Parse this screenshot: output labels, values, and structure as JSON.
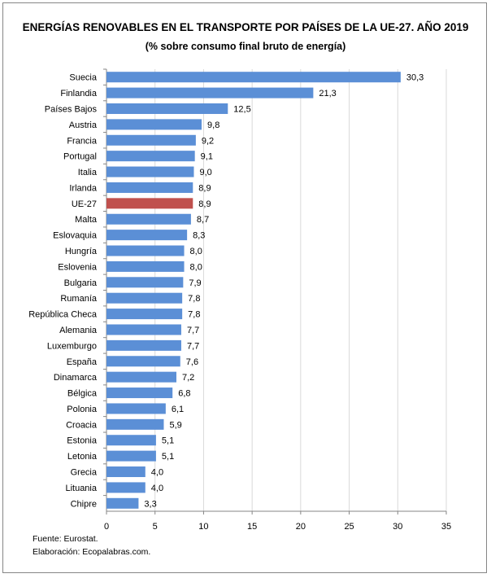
{
  "chart_data": {
    "type": "bar",
    "orientation": "horizontal",
    "title": "ENERGÍAS RENOVABLES EN EL TRANSPORTE POR PAÍSES DE LA UE-27. AÑO 2019",
    "subtitle": "(% sobre consumo final bruto de energía)",
    "categories": [
      "Suecia",
      "Finlandia",
      "Países Bajos",
      "Austria",
      "Francia",
      "Portugal",
      "Italia",
      "Irlanda",
      "UE-27",
      "Malta",
      "Eslovaquia",
      "Hungría",
      "Eslovenia",
      "Bulgaria",
      "Rumanía",
      "República Checa",
      "Alemania",
      "Luxemburgo",
      "España",
      "Dinamarca",
      "Bélgica",
      "Polonia",
      "Croacia",
      "Estonia",
      "Letonia",
      "Grecia",
      "Lituania",
      "Chipre"
    ],
    "values": [
      30.3,
      21.3,
      12.5,
      9.8,
      9.2,
      9.1,
      9.0,
      8.9,
      8.9,
      8.7,
      8.3,
      8.0,
      8.0,
      7.9,
      7.8,
      7.8,
      7.7,
      7.7,
      7.6,
      7.2,
      6.8,
      6.1,
      5.9,
      5.1,
      5.1,
      4.0,
      4.0,
      3.3
    ],
    "data_labels": [
      "30,3",
      "21,3",
      "12,5",
      "9,8",
      "9,2",
      "9,1",
      "9,0",
      "8,9",
      "8,9",
      "8,7",
      "8,3",
      "8,0",
      "8,0",
      "7,9",
      "7,8",
      "7,8",
      "7,7",
      "7,7",
      "7,6",
      "7,2",
      "6,8",
      "6,1",
      "5,9",
      "5,1",
      "5,1",
      "4,0",
      "4,0",
      "3,3"
    ],
    "highlight": "UE-27",
    "xlim": [
      0,
      35
    ],
    "xticks": [
      0,
      5,
      10,
      15,
      20,
      25,
      30,
      35
    ],
    "grid": true,
    "xlabel": "",
    "ylabel": "",
    "colors": {
      "bar": "#5B8FD6",
      "highlight": "#C0504D",
      "grid": "#D9D9D9"
    }
  },
  "footer": {
    "source": "Fuente: Eurostat.",
    "credit": "Elaboración: Ecopalabras.com."
  }
}
